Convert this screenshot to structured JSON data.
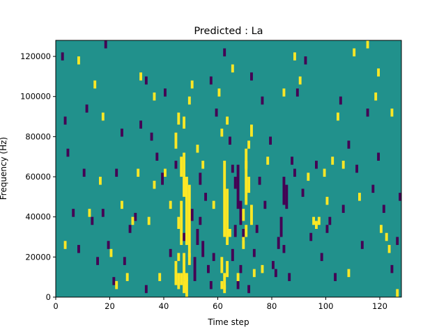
{
  "chart_data": {
    "type": "heatmap",
    "title": "Predicted : La",
    "xlabel": "Time step",
    "ylabel": "Frequency (Hz)",
    "xlim": [
      0,
      128
    ],
    "ylim": [
      0,
      128000
    ],
    "x_ticks": [
      0,
      20,
      40,
      60,
      80,
      100,
      120
    ],
    "y_ticks": [
      0,
      20000,
      40000,
      60000,
      80000,
      100000,
      120000
    ],
    "grid": false,
    "legend": "none",
    "colors": {
      "background": "#21918c",
      "high": "#fde725",
      "low": "#440154"
    },
    "cells": {
      "yellow": [
        [
          46,
          60000,
          70000
        ],
        [
          47,
          50000,
          72000
        ],
        [
          48,
          26000,
          60000
        ],
        [
          49,
          20000,
          56000
        ],
        [
          46,
          26000,
          48000
        ],
        [
          45,
          34000,
          40000
        ],
        [
          47,
          8000,
          22000
        ],
        [
          48,
          8000,
          12000
        ],
        [
          45,
          18000,
          22000
        ],
        [
          49,
          16000,
          22000
        ],
        [
          45,
          4000,
          12000
        ],
        [
          46,
          6000,
          12000
        ],
        [
          47,
          2000,
          8000
        ],
        [
          48,
          0,
          10000
        ],
        [
          44,
          6000,
          18000
        ],
        [
          62,
          30000,
          68000
        ],
        [
          63,
          26000,
          54000
        ],
        [
          61,
          12000,
          20000
        ],
        [
          63,
          10000,
          18000
        ],
        [
          62,
          4000,
          12000
        ],
        [
          61,
          4000,
          8000
        ],
        [
          62,
          2000,
          6000
        ],
        [
          64,
          30000,
          34000
        ],
        [
          61,
          80000,
          84000
        ],
        [
          63,
          86000,
          90000
        ],
        [
          70,
          46000,
          68000
        ],
        [
          71,
          52000,
          60000
        ],
        [
          69,
          38000,
          44000
        ],
        [
          72,
          36000,
          46000
        ],
        [
          70,
          30000,
          36000
        ],
        [
          69,
          24000,
          30000
        ],
        [
          70,
          64000,
          74000
        ],
        [
          71,
          74000,
          78000
        ],
        [
          72,
          80000,
          86000
        ],
        [
          73,
          10000,
          14000
        ],
        [
          44,
          74000,
          82000
        ],
        [
          45,
          86000,
          92000
        ],
        [
          47,
          84000,
          90000
        ],
        [
          49,
          96000,
          100000
        ],
        [
          50,
          104000,
          108000
        ],
        [
          22,
          4000,
          8000
        ],
        [
          30,
          60000,
          64000
        ],
        [
          36,
          54000,
          58000
        ],
        [
          40,
          60000,
          64000
        ],
        [
          42,
          44000,
          48000
        ],
        [
          26,
          8000,
          12000
        ],
        [
          20,
          20000,
          24000
        ],
        [
          28,
          36000,
          40000
        ],
        [
          34,
          36000,
          40000
        ],
        [
          24,
          44000,
          48000
        ],
        [
          95,
          36000,
          40000
        ],
        [
          96,
          34000,
          38000
        ],
        [
          97,
          36000,
          40000
        ],
        [
          93,
          58000,
          62000
        ],
        [
          99,
          60000,
          64000
        ],
        [
          102,
          66000,
          70000
        ],
        [
          104,
          88000,
          92000
        ],
        [
          110,
          120000,
          124000
        ],
        [
          115,
          124000,
          128000
        ],
        [
          118,
          98000,
          102000
        ],
        [
          122,
          28000,
          32000
        ],
        [
          124,
          90000,
          94000
        ],
        [
          123,
          22000,
          26000
        ],
        [
          119,
          110000,
          114000
        ],
        [
          106,
          64000,
          68000
        ],
        [
          8,
          116000,
          120000
        ],
        [
          14,
          104000,
          108000
        ],
        [
          17,
          88000,
          92000
        ],
        [
          31,
          108000,
          112000
        ],
        [
          36,
          98000,
          102000
        ],
        [
          52,
          72000,
          76000
        ],
        [
          54,
          64000,
          68000
        ],
        [
          60,
          100000,
          104000
        ],
        [
          65,
          112000,
          116000
        ],
        [
          76,
          12000,
          16000
        ],
        [
          84,
          100000,
          104000
        ],
        [
          88,
          118000,
          122000
        ],
        [
          100,
          46000,
          50000
        ],
        [
          108,
          10000,
          14000
        ],
        [
          112,
          48000,
          52000
        ],
        [
          120,
          32000,
          36000
        ],
        [
          3,
          24000,
          28000
        ],
        [
          12,
          40000,
          44000
        ],
        [
          16,
          56000,
          60000
        ],
        [
          38,
          8000,
          12000
        ],
        [
          58,
          44000,
          48000
        ],
        [
          67,
          8000,
          12000
        ],
        [
          78,
          66000,
          70000
        ],
        [
          90,
          106000,
          110000
        ],
        [
          126,
          0,
          4000
        ]
      ],
      "purple": [
        [
          84,
          46000,
          60000
        ],
        [
          85,
          44000,
          56000
        ],
        [
          83,
          30000,
          40000
        ],
        [
          82,
          24000,
          30000
        ],
        [
          80,
          14000,
          18000
        ],
        [
          81,
          10000,
          14000
        ],
        [
          84,
          22000,
          26000
        ],
        [
          86,
          8000,
          12000
        ],
        [
          88,
          60000,
          64000
        ],
        [
          87,
          66000,
          70000
        ],
        [
          67,
          44000,
          66000
        ],
        [
          68,
          36000,
          48000
        ],
        [
          66,
          30000,
          36000
        ],
        [
          69,
          28000,
          34000
        ],
        [
          65,
          18000,
          24000
        ],
        [
          71,
          2000,
          6000
        ],
        [
          67,
          4000,
          8000
        ],
        [
          68,
          12000,
          16000
        ],
        [
          66,
          54000,
          60000
        ],
        [
          65,
          62000,
          66000
        ],
        [
          52,
          26000,
          34000
        ],
        [
          54,
          20000,
          28000
        ],
        [
          53,
          36000,
          40000
        ],
        [
          55,
          48000,
          52000
        ],
        [
          50,
          38000,
          44000
        ],
        [
          51,
          8000,
          20000
        ],
        [
          56,
          12000,
          16000
        ],
        [
          57,
          4000,
          8000
        ],
        [
          53,
          56000,
          62000
        ],
        [
          58,
          18000,
          22000
        ],
        [
          29,
          38000,
          42000
        ],
        [
          33,
          106000,
          110000
        ],
        [
          27,
          32000,
          36000
        ],
        [
          25,
          16000,
          20000
        ],
        [
          19,
          24000,
          28000
        ],
        [
          17,
          40000,
          44000
        ],
        [
          22,
          60000,
          64000
        ],
        [
          31,
          84000,
          88000
        ],
        [
          35,
          78000,
          82000
        ],
        [
          39,
          56000,
          62000
        ],
        [
          3,
          86000,
          90000
        ],
        [
          4,
          70000,
          74000
        ],
        [
          6,
          40000,
          44000
        ],
        [
          8,
          22000,
          26000
        ],
        [
          10,
          60000,
          64000
        ],
        [
          13,
          36000,
          40000
        ],
        [
          15,
          16000,
          20000
        ],
        [
          18,
          124000,
          128000
        ],
        [
          21,
          6000,
          10000
        ],
        [
          24,
          80000,
          84000
        ],
        [
          91,
          50000,
          54000
        ],
        [
          94,
          28000,
          32000
        ],
        [
          98,
          18000,
          22000
        ],
        [
          101,
          36000,
          40000
        ],
        [
          103,
          8000,
          12000
        ],
        [
          106,
          42000,
          46000
        ],
        [
          108,
          74000,
          78000
        ],
        [
          111,
          62000,
          66000
        ],
        [
          113,
          24000,
          28000
        ],
        [
          115,
          90000,
          94000
        ],
        [
          117,
          52000,
          56000
        ],
        [
          119,
          68000,
          72000
        ],
        [
          121,
          42000,
          46000
        ],
        [
          124,
          12000,
          16000
        ],
        [
          127,
          48000,
          52000
        ],
        [
          75,
          56000,
          60000
        ],
        [
          77,
          44000,
          48000
        ],
        [
          74,
          32000,
          36000
        ],
        [
          73,
          20000,
          24000
        ],
        [
          79,
          76000,
          80000
        ],
        [
          89,
          100000,
          104000
        ],
        [
          92,
          116000,
          120000
        ],
        [
          96,
          64000,
          68000
        ],
        [
          100,
          32000,
          36000
        ],
        [
          105,
          96000,
          100000
        ],
        [
          40,
          100000,
          104000
        ],
        [
          42,
          20000,
          24000
        ],
        [
          44,
          64000,
          68000
        ],
        [
          57,
          106000,
          110000
        ],
        [
          59,
          90000,
          94000
        ],
        [
          62,
          120000,
          124000
        ],
        [
          64,
          76000,
          80000
        ],
        [
          72,
          108000,
          112000
        ],
        [
          76,
          96000,
          100000
        ],
        [
          2,
          118000,
          122000
        ],
        [
          11,
          92000,
          96000
        ],
        [
          37,
          68000,
          72000
        ],
        [
          47,
          28000,
          32000
        ],
        [
          33,
          2000,
          6000
        ],
        [
          126,
          26000,
          30000
        ]
      ]
    }
  }
}
